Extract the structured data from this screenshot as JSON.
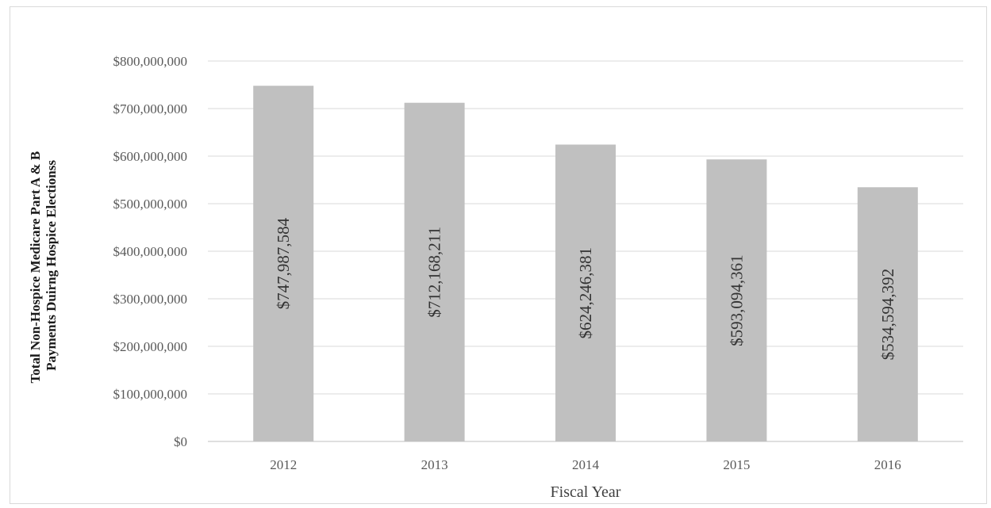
{
  "chart_data": {
    "type": "bar",
    "title": "",
    "xlabel": "Fiscal Year",
    "ylabel": [
      "Total Non-Hospice Medicare Part A & B",
      "Payments Duirng Hospice Electionss"
    ],
    "categories": [
      "2012",
      "2013",
      "2014",
      "2015",
      "2016"
    ],
    "values": [
      747987584,
      712168211,
      624246381,
      593094361,
      534594392
    ],
    "data_labels": [
      "$747,987,584",
      "$712,168,211",
      "$624,246,381",
      "$593,094,361",
      "$534,594,392"
    ],
    "ylim": [
      0,
      800000000
    ],
    "yticks": [
      0,
      100000000,
      200000000,
      300000000,
      400000000,
      500000000,
      600000000,
      700000000,
      800000000
    ],
    "ytick_labels": [
      "$0",
      "$100,000,000",
      "$200,000,000",
      "$300,000,000",
      "$400,000,000",
      "$500,000,000",
      "$600,000,000",
      "$700,000,000",
      "$800,000,000"
    ],
    "grid": true,
    "legend": "none",
    "bar_color": "#c0c0c0"
  }
}
